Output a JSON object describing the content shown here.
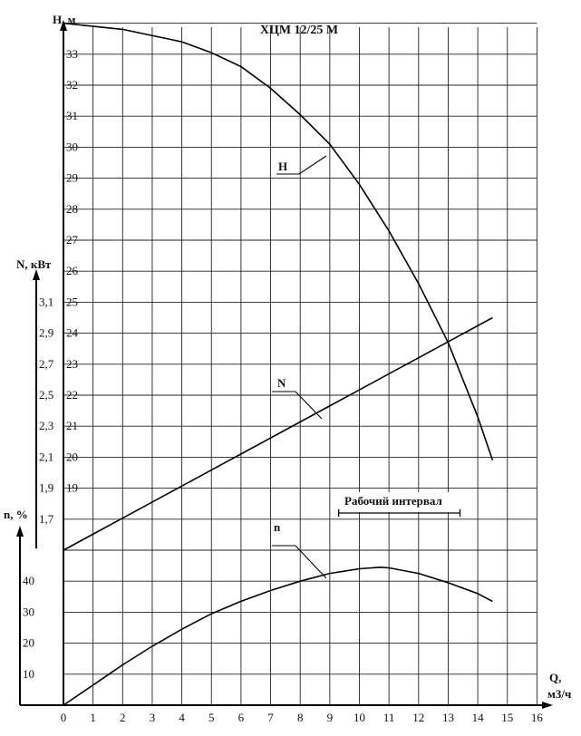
{
  "chart_data": {
    "type": "line",
    "title": "ХЦМ 12/25 М",
    "xlabel": "Q, м3/ч",
    "xlabel_line1": "Q,",
    "xlabel_line2": "м3/ч",
    "xlim": [
      0,
      16
    ],
    "x_ticks": [
      "0",
      "1",
      "2",
      "3",
      "4",
      "5",
      "6",
      "7",
      "8",
      "9",
      "10",
      "11",
      "12",
      "13",
      "14",
      "15",
      "16"
    ],
    "grid": true,
    "axes": {
      "H": {
        "label": "H, м",
        "ticks": [
          "19",
          "20",
          "21",
          "22",
          "23",
          "24",
          "25",
          "26",
          "27",
          "28",
          "29",
          "30",
          "31",
          "32",
          "33"
        ],
        "range": [
          18,
          34
        ]
      },
      "N": {
        "label": "N, кВт",
        "ticks": [
          "1,7",
          "1,9",
          "2,1",
          "2,3",
          "2,5",
          "2,7",
          "2,9",
          "3,1"
        ],
        "range": [
          1.5,
          3.3
        ]
      },
      "eta": {
        "label": "n, %",
        "ticks": [
          "10",
          "20",
          "30",
          "40"
        ],
        "range": [
          0,
          50
        ]
      }
    },
    "series": [
      {
        "name": "H",
        "axis": "H",
        "x": [
          0,
          2,
          4,
          5,
          6,
          7,
          8,
          9,
          10,
          11,
          12,
          13,
          14,
          14.5
        ],
        "y": [
          34,
          33.8,
          33.4,
          33.05,
          32.6,
          31.9,
          31.05,
          30.1,
          28.8,
          27.3,
          25.6,
          23.7,
          21.3,
          19.9
        ]
      },
      {
        "name": "N",
        "axis": "N",
        "x": [
          0,
          14.5
        ],
        "y": [
          1.5,
          3.0
        ]
      },
      {
        "name": "n",
        "axis": "eta",
        "x": [
          0,
          1,
          2,
          3,
          4,
          5,
          6,
          7,
          8,
          9,
          10,
          10.7,
          11,
          12,
          13,
          14,
          14.5
        ],
        "y": [
          0,
          6.5,
          13,
          19,
          24.5,
          29.5,
          33.5,
          37,
          40,
          42.5,
          44,
          44.5,
          44.3,
          42.5,
          39.5,
          36,
          33.5
        ]
      }
    ],
    "annotations": {
      "working_interval": {
        "label": "Рабочий интервал",
        "x_range": [
          9.3,
          13.4
        ]
      }
    }
  }
}
